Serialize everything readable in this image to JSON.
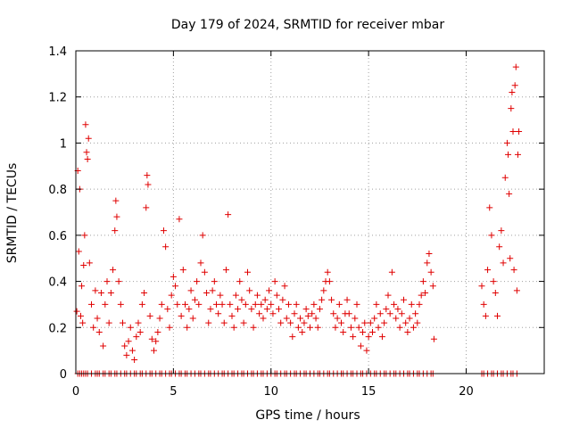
{
  "chart_data": {
    "type": "scatter",
    "title": "Day 179 of 2024, SRMTID for receiver mbar",
    "xlabel": "GPS time / hours",
    "ylabel": "SRMTID / TECUs",
    "xlim": [
      0,
      24
    ],
    "ylim": [
      0,
      1.4
    ],
    "xticks": [
      "0",
      "5",
      "10",
      "15",
      "20"
    ],
    "yticks": [
      "0",
      "0.2",
      "0.4",
      "0.6",
      "0.8",
      "1",
      "1.2",
      "1.4"
    ],
    "grid": true,
    "marker": "+",
    "series_color": "#e00000",
    "series": [
      {
        "name": "SRMTID",
        "zero_band_x": [
          0.1,
          0.2,
          0.3,
          0.4,
          0.5,
          0.6,
          0.8,
          1.0,
          1.1,
          1.2,
          1.4,
          1.5,
          1.7,
          1.8,
          2.0,
          2.1,
          2.3,
          2.5,
          2.6,
          2.8,
          3.0,
          3.1,
          3.3,
          3.4,
          3.6,
          3.8,
          3.9,
          4.1,
          4.3,
          4.4,
          4.6,
          4.8,
          4.9,
          5.1,
          5.3,
          5.4,
          5.6,
          5.7,
          5.9,
          6.1,
          6.3,
          6.4,
          6.6,
          6.8,
          6.9,
          7.1,
          7.3,
          7.5,
          7.6,
          7.8,
          8.0,
          8.1,
          8.3,
          8.5,
          8.6,
          8.8,
          9.0,
          9.1,
          9.3,
          9.5,
          9.6,
          9.8,
          10.0,
          10.2,
          10.3,
          10.5,
          10.7,
          10.8,
          11.0,
          11.2,
          11.3,
          11.5,
          11.7,
          11.8,
          12.0,
          12.2,
          12.4,
          12.5,
          12.7,
          12.9,
          13.0,
          13.2,
          13.4,
          13.6,
          13.7,
          13.9,
          14.1,
          14.2,
          14.4,
          14.6,
          14.7,
          14.9,
          15.1,
          15.3,
          15.4,
          15.6,
          15.8,
          15.9,
          16.1,
          16.3,
          16.4,
          16.6,
          16.8,
          17.0,
          17.1,
          17.3,
          17.5,
          17.6,
          17.8,
          18.0,
          18.2,
          18.3,
          20.8,
          20.9,
          21.1,
          21.3,
          21.4,
          21.6,
          21.8,
          21.9,
          22.1,
          22.3,
          22.4,
          22.6
        ],
        "points": [
          [
            0.05,
            0.27
          ],
          [
            0.1,
            0.88
          ],
          [
            0.15,
            0.53
          ],
          [
            0.2,
            0.8
          ],
          [
            0.25,
            0.25
          ],
          [
            0.3,
            0.38
          ],
          [
            0.35,
            0.22
          ],
          [
            0.4,
            0.47
          ],
          [
            0.45,
            0.6
          ],
          [
            0.5,
            1.08
          ],
          [
            0.55,
            0.96
          ],
          [
            0.6,
            0.93
          ],
          [
            0.65,
            1.02
          ],
          [
            0.7,
            0.48
          ],
          [
            0.8,
            0.3
          ],
          [
            0.9,
            0.2
          ],
          [
            1.0,
            0.36
          ],
          [
            1.1,
            0.24
          ],
          [
            1.2,
            0.18
          ],
          [
            1.3,
            0.35
          ],
          [
            1.4,
            0.12
          ],
          [
            1.5,
            0.3
          ],
          [
            1.6,
            0.4
          ],
          [
            1.7,
            0.22
          ],
          [
            1.8,
            0.35
          ],
          [
            1.9,
            0.45
          ],
          [
            2.0,
            0.62
          ],
          [
            2.05,
            0.75
          ],
          [
            2.1,
            0.68
          ],
          [
            2.2,
            0.4
          ],
          [
            2.3,
            0.3
          ],
          [
            2.4,
            0.22
          ],
          [
            2.5,
            0.12
          ],
          [
            2.6,
            0.08
          ],
          [
            2.7,
            0.14
          ],
          [
            2.8,
            0.2
          ],
          [
            2.9,
            0.1
          ],
          [
            3.0,
            0.06
          ],
          [
            3.1,
            0.16
          ],
          [
            3.2,
            0.22
          ],
          [
            3.3,
            0.18
          ],
          [
            3.4,
            0.3
          ],
          [
            3.5,
            0.35
          ],
          [
            3.6,
            0.72
          ],
          [
            3.65,
            0.86
          ],
          [
            3.7,
            0.82
          ],
          [
            3.8,
            0.25
          ],
          [
            3.9,
            0.15
          ],
          [
            4.0,
            0.1
          ],
          [
            4.1,
            0.14
          ],
          [
            4.2,
            0.18
          ],
          [
            4.3,
            0.24
          ],
          [
            4.4,
            0.3
          ],
          [
            4.5,
            0.62
          ],
          [
            4.6,
            0.55
          ],
          [
            4.7,
            0.28
          ],
          [
            4.8,
            0.2
          ],
          [
            4.9,
            0.34
          ],
          [
            5.0,
            0.42
          ],
          [
            5.1,
            0.38
          ],
          [
            5.2,
            0.3
          ],
          [
            5.3,
            0.67
          ],
          [
            5.4,
            0.25
          ],
          [
            5.5,
            0.45
          ],
          [
            5.6,
            0.3
          ],
          [
            5.7,
            0.2
          ],
          [
            5.8,
            0.28
          ],
          [
            5.9,
            0.36
          ],
          [
            6.0,
            0.24
          ],
          [
            6.1,
            0.32
          ],
          [
            6.2,
            0.4
          ],
          [
            6.3,
            0.3
          ],
          [
            6.4,
            0.48
          ],
          [
            6.5,
            0.6
          ],
          [
            6.6,
            0.44
          ],
          [
            6.7,
            0.35
          ],
          [
            6.8,
            0.22
          ],
          [
            6.9,
            0.28
          ],
          [
            7.0,
            0.36
          ],
          [
            7.1,
            0.4
          ],
          [
            7.2,
            0.3
          ],
          [
            7.3,
            0.26
          ],
          [
            7.4,
            0.34
          ],
          [
            7.5,
            0.3
          ],
          [
            7.6,
            0.22
          ],
          [
            7.7,
            0.45
          ],
          [
            7.8,
            0.69
          ],
          [
            7.9,
            0.3
          ],
          [
            8.0,
            0.25
          ],
          [
            8.1,
            0.2
          ],
          [
            8.2,
            0.34
          ],
          [
            8.3,
            0.28
          ],
          [
            8.4,
            0.4
          ],
          [
            8.5,
            0.32
          ],
          [
            8.6,
            0.22
          ],
          [
            8.7,
            0.3
          ],
          [
            8.8,
            0.44
          ],
          [
            8.9,
            0.36
          ],
          [
            9.0,
            0.28
          ],
          [
            9.1,
            0.2
          ],
          [
            9.2,
            0.3
          ],
          [
            9.3,
            0.34
          ],
          [
            9.4,
            0.26
          ],
          [
            9.5,
            0.3
          ],
          [
            9.6,
            0.24
          ],
          [
            9.7,
            0.32
          ],
          [
            9.8,
            0.28
          ],
          [
            9.9,
            0.36
          ],
          [
            10.0,
            0.3
          ],
          [
            10.1,
            0.26
          ],
          [
            10.2,
            0.4
          ],
          [
            10.3,
            0.34
          ],
          [
            10.4,
            0.28
          ],
          [
            10.5,
            0.22
          ],
          [
            10.6,
            0.32
          ],
          [
            10.7,
            0.38
          ],
          [
            10.8,
            0.24
          ],
          [
            10.9,
            0.3
          ],
          [
            11.0,
            0.22
          ],
          [
            11.1,
            0.16
          ],
          [
            11.2,
            0.26
          ],
          [
            11.3,
            0.3
          ],
          [
            11.4,
            0.2
          ],
          [
            11.5,
            0.24
          ],
          [
            11.6,
            0.18
          ],
          [
            11.7,
            0.22
          ],
          [
            11.8,
            0.28
          ],
          [
            11.9,
            0.25
          ],
          [
            12.0,
            0.2
          ],
          [
            12.1,
            0.26
          ],
          [
            12.2,
            0.3
          ],
          [
            12.3,
            0.24
          ],
          [
            12.4,
            0.2
          ],
          [
            12.5,
            0.28
          ],
          [
            12.6,
            0.32
          ],
          [
            12.7,
            0.36
          ],
          [
            12.8,
            0.4
          ],
          [
            12.9,
            0.44
          ],
          [
            13.0,
            0.4
          ],
          [
            13.1,
            0.32
          ],
          [
            13.2,
            0.26
          ],
          [
            13.3,
            0.2
          ],
          [
            13.4,
            0.24
          ],
          [
            13.5,
            0.3
          ],
          [
            13.6,
            0.22
          ],
          [
            13.7,
            0.18
          ],
          [
            13.8,
            0.26
          ],
          [
            13.9,
            0.32
          ],
          [
            14.0,
            0.26
          ],
          [
            14.1,
            0.2
          ],
          [
            14.2,
            0.16
          ],
          [
            14.3,
            0.24
          ],
          [
            14.4,
            0.3
          ],
          [
            14.5,
            0.2
          ],
          [
            14.6,
            0.12
          ],
          [
            14.7,
            0.18
          ],
          [
            14.8,
            0.22
          ],
          [
            14.9,
            0.1
          ],
          [
            15.0,
            0.16
          ],
          [
            15.1,
            0.22
          ],
          [
            15.2,
            0.18
          ],
          [
            15.3,
            0.24
          ],
          [
            15.4,
            0.3
          ],
          [
            15.5,
            0.2
          ],
          [
            15.6,
            0.26
          ],
          [
            15.7,
            0.16
          ],
          [
            15.8,
            0.22
          ],
          [
            15.9,
            0.28
          ],
          [
            16.0,
            0.34
          ],
          [
            16.1,
            0.26
          ],
          [
            16.2,
            0.44
          ],
          [
            16.3,
            0.3
          ],
          [
            16.4,
            0.24
          ],
          [
            16.5,
            0.28
          ],
          [
            16.6,
            0.2
          ],
          [
            16.7,
            0.26
          ],
          [
            16.8,
            0.32
          ],
          [
            16.9,
            0.22
          ],
          [
            17.0,
            0.18
          ],
          [
            17.1,
            0.24
          ],
          [
            17.2,
            0.3
          ],
          [
            17.3,
            0.2
          ],
          [
            17.4,
            0.26
          ],
          [
            17.5,
            0.22
          ],
          [
            17.6,
            0.3
          ],
          [
            17.7,
            0.34
          ],
          [
            17.8,
            0.4
          ],
          [
            17.9,
            0.35
          ],
          [
            18.0,
            0.48
          ],
          [
            18.1,
            0.52
          ],
          [
            18.2,
            0.44
          ],
          [
            18.3,
            0.38
          ],
          [
            18.35,
            0.15
          ],
          [
            20.8,
            0.38
          ],
          [
            20.9,
            0.3
          ],
          [
            21.0,
            0.25
          ],
          [
            21.1,
            0.45
          ],
          [
            21.2,
            0.72
          ],
          [
            21.3,
            0.6
          ],
          [
            21.4,
            0.4
          ],
          [
            21.5,
            0.35
          ],
          [
            21.6,
            0.25
          ],
          [
            21.7,
            0.55
          ],
          [
            21.8,
            0.62
          ],
          [
            21.9,
            0.48
          ],
          [
            22.0,
            0.85
          ],
          [
            22.1,
            1.0
          ],
          [
            22.15,
            0.95
          ],
          [
            22.2,
            0.78
          ],
          [
            22.25,
            0.5
          ],
          [
            22.3,
            1.15
          ],
          [
            22.35,
            1.22
          ],
          [
            22.4,
            1.05
          ],
          [
            22.45,
            0.45
          ],
          [
            22.5,
            1.25
          ],
          [
            22.55,
            1.33
          ],
          [
            22.6,
            0.36
          ],
          [
            22.65,
            0.95
          ],
          [
            22.7,
            1.05
          ]
        ]
      }
    ]
  }
}
